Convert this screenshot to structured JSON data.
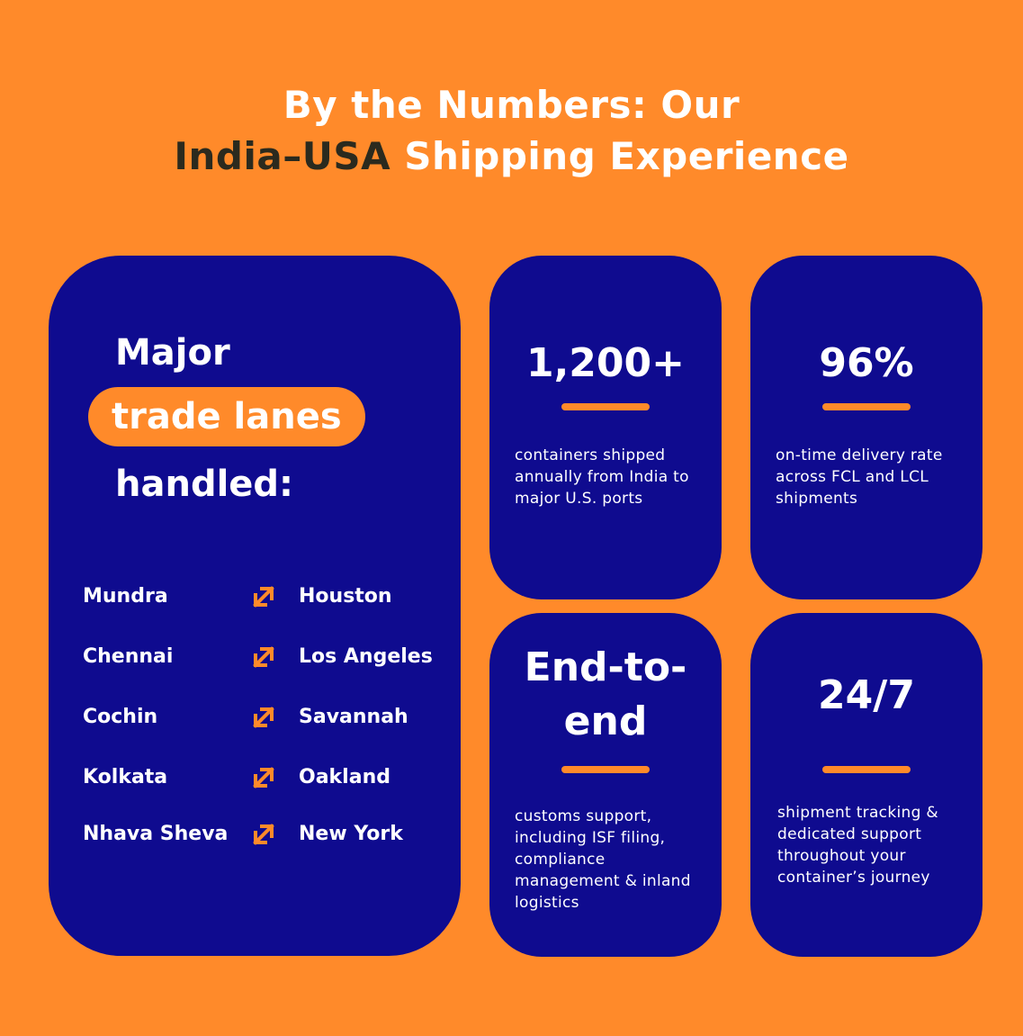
{
  "header": {
    "line1": "By the Numbers: Our",
    "line2_highlight": "India–USA",
    "line2_rest": " Shipping Experience"
  },
  "lanes_card": {
    "heading_line1": "Major",
    "heading_pill": "trade lanes",
    "heading_line3": "handled:",
    "lanes": [
      {
        "origin": "Mundra",
        "destination": "Houston"
      },
      {
        "origin": "Chennai",
        "destination": "Los Angeles"
      },
      {
        "origin": "Cochin",
        "destination": "Savannah"
      },
      {
        "origin": "Kolkata",
        "destination": "Oakland"
      },
      {
        "origin": "Nhava Sheva",
        "destination": "New York"
      }
    ],
    "arrow_icon": "double-arrow-diagonal-icon"
  },
  "stats": [
    {
      "value": "1,200+",
      "description": "containers shipped annually from India to major U.S. ports"
    },
    {
      "value": "96%",
      "description": "on-time delivery rate across FCL and LCL shipments"
    },
    {
      "value_line1": "End-to-",
      "value_line2": "end",
      "description": "customs support, including ISF filing, compliance management & inland logistics"
    },
    {
      "value": "24/7",
      "description": "shipment tracking & dedicated support throughout your container’s journey"
    }
  ],
  "colors": {
    "background": "#FF8A2A",
    "card": "#0F0B8F",
    "accent": "#FF8A2A",
    "dark_text": "#2B2A1E",
    "light_text": "#FFFFFF"
  }
}
